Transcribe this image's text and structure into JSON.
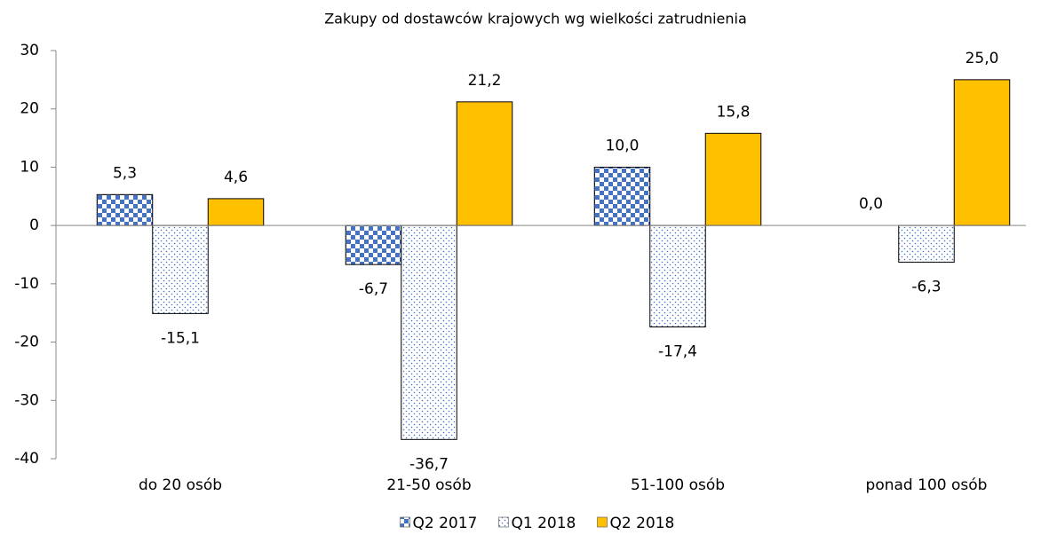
{
  "chart_data": {
    "type": "bar",
    "title": "Zakupy od dostawców krajowych wg wielkości zatrudnienia",
    "categories": [
      "do 20 osób",
      "21-50 osób",
      "51-100 osób",
      "ponad 100 osób"
    ],
    "series": [
      {
        "name": "Q2 2017",
        "color": "#4472c4",
        "pattern": "checker",
        "values": [
          5.3,
          -6.7,
          10.0,
          0.0
        ],
        "value_labels": [
          "5,3",
          "-6,7",
          "10,0",
          "0,0"
        ]
      },
      {
        "name": "Q1 2018",
        "color": "#4472c4",
        "pattern": "dots",
        "values": [
          -15.1,
          -36.7,
          -17.4,
          -6.3
        ],
        "value_labels": [
          "-15,1",
          "-36,7",
          "-17,4",
          "-6,3"
        ]
      },
      {
        "name": "Q2 2018",
        "color": "#ffc000",
        "values": [
          4.6,
          21.2,
          15.8,
          25.0
        ],
        "value_labels": [
          "4,6",
          "21,2",
          "15,8",
          "25,0"
        ]
      }
    ],
    "ylim": [
      -40,
      30
    ],
    "yticks": [
      -40,
      -30,
      -20,
      -10,
      0,
      10,
      20,
      30
    ],
    "legend": "bottom"
  }
}
